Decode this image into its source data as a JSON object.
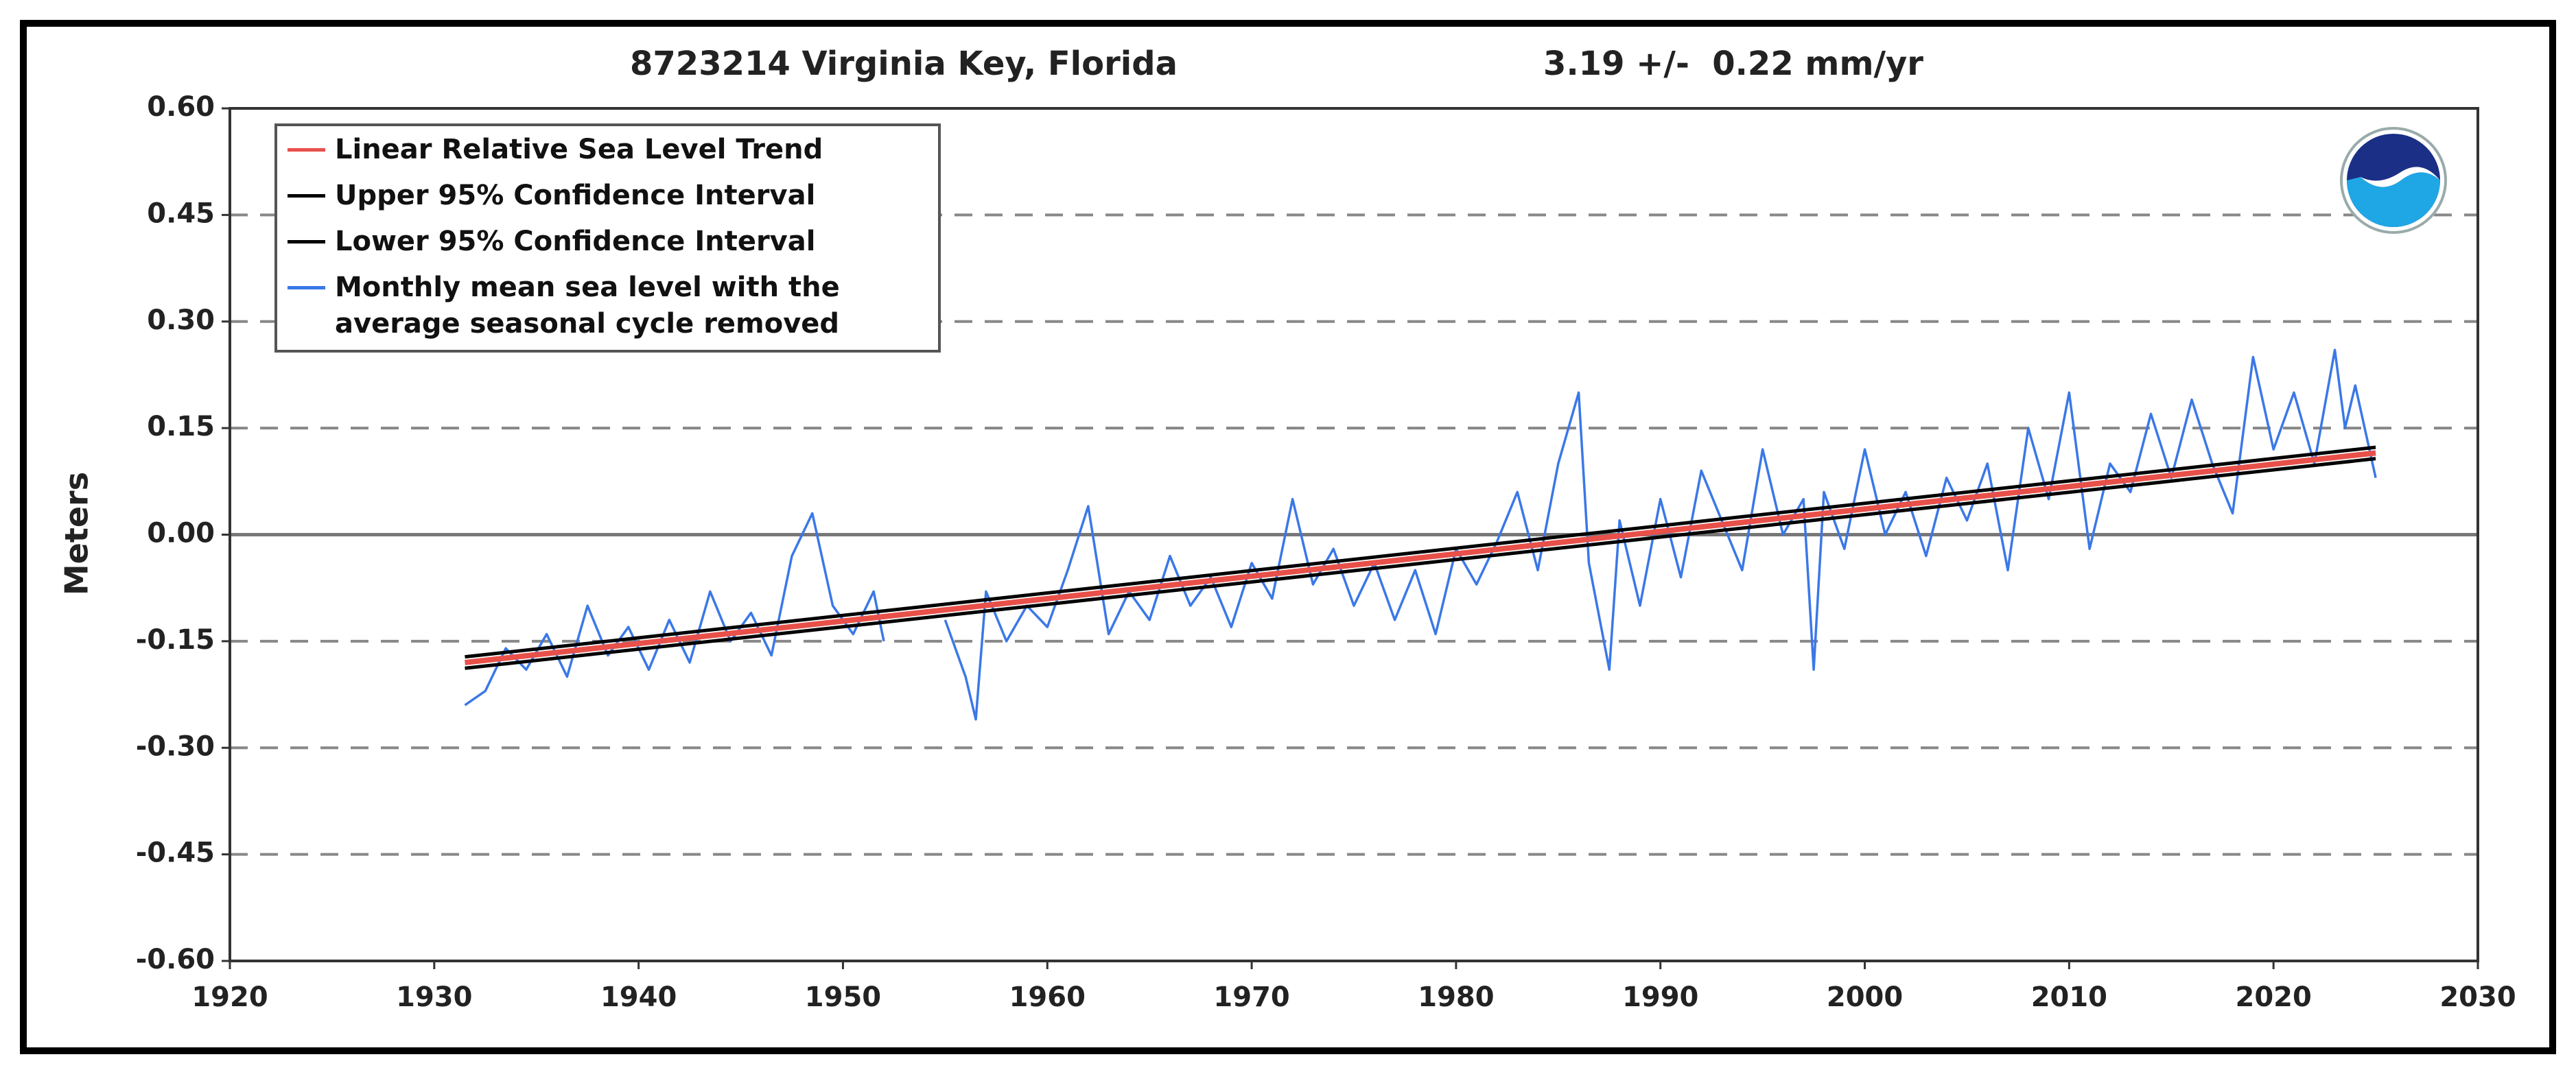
{
  "chart_data": {
    "type": "line",
    "title": "8723214 Virginia Key, Florida",
    "subtitle": "3.19 +/-  0.22 mm/yr",
    "ylabel": "Meters",
    "xlim": [
      1920,
      2030
    ],
    "xticks": [
      1920,
      1930,
      1940,
      1950,
      1960,
      1970,
      1980,
      1990,
      2000,
      2010,
      2020,
      2030
    ],
    "ylim": [
      -0.6,
      0.6
    ],
    "yticks": [
      {
        "value": 0.6,
        "label": "0.60"
      },
      0.45,
      {
        "value": 0.3,
        "label": "0.30"
      },
      0.15,
      {
        "value": 0,
        "label": "0.00"
      },
      -0.15,
      {
        "value": -0.3,
        "label": "-0.30"
      },
      -0.45,
      {
        "value": -0.6,
        "label": "-0.60"
      }
    ],
    "grid": true,
    "legend": "upper left",
    "series": [
      {
        "name": "Linear Relative Sea Level Trend",
        "color": "#e8504a",
        "x": [
          1931.5,
          2025
        ],
        "values": [
          -0.18,
          0.115
        ]
      },
      {
        "name": "Upper 95% Confidence Interval",
        "color": "#000000",
        "x": [
          1931.5,
          2025
        ],
        "values": [
          -0.172,
          0.123
        ]
      },
      {
        "name": "Lower 95% Confidence Interval",
        "color": "#000000",
        "x": [
          1931.5,
          2025
        ],
        "values": [
          -0.188,
          0.107
        ]
      },
      {
        "name": "Monthly mean sea level with the\naverage seasonal cycle removed",
        "color": "#3b78e7",
        "x": [
          1931.5,
          1932.5,
          1933.5,
          1934.5,
          1935.5,
          1936.5,
          1937.5,
          1938.5,
          1939.5,
          1940.5,
          1941.5,
          1942.5,
          1943.5,
          1944.5,
          1945.5,
          1946.5,
          1947.5,
          1948.5,
          1949.5,
          1950.5,
          1951.5,
          1952,
          1953.5,
          1955,
          1956,
          1956.5,
          1957,
          1958,
          1959,
          1960,
          1961,
          1962,
          1963,
          1964,
          1965,
          1966,
          1967,
          1968,
          1969,
          1970,
          1971,
          1972,
          1973,
          1974,
          1975,
          1976,
          1977,
          1978,
          1979,
          1980,
          1981,
          1982,
          1983,
          1984,
          1985,
          1986,
          1986.5,
          1987.5,
          1988,
          1989,
          1990,
          1991,
          1992,
          1993,
          1994,
          1995,
          1996,
          1997,
          1997.5,
          1998,
          1999,
          2000,
          2001,
          2002,
          2003,
          2004,
          2005,
          2006,
          2007,
          2008,
          2009,
          2010,
          2011,
          2012,
          2013,
          2014,
          2015,
          2016,
          2017,
          2018,
          2019,
          2020,
          2021,
          2022,
          2023,
          2023.5,
          2024,
          2025
        ],
        "values": [
          -0.24,
          -0.22,
          -0.16,
          -0.19,
          -0.14,
          -0.2,
          -0.1,
          -0.17,
          -0.13,
          -0.19,
          -0.12,
          -0.18,
          -0.08,
          -0.15,
          -0.11,
          -0.17,
          -0.03,
          0.03,
          -0.1,
          -0.14,
          -0.08,
          -0.15,
          null,
          -0.12,
          -0.2,
          -0.26,
          -0.08,
          -0.15,
          -0.1,
          -0.13,
          -0.05,
          0.04,
          -0.14,
          -0.08,
          -0.12,
          -0.03,
          -0.1,
          -0.06,
          -0.13,
          -0.04,
          -0.09,
          0.05,
          -0.07,
          -0.02,
          -0.1,
          -0.04,
          -0.12,
          -0.05,
          -0.14,
          -0.02,
          -0.07,
          -0.01,
          0.06,
          -0.05,
          0.1,
          0.2,
          -0.04,
          -0.19,
          0.02,
          -0.1,
          0.05,
          -0.06,
          0.09,
          0.02,
          -0.05,
          0.12,
          0.0,
          0.05,
          -0.19,
          0.06,
          -0.02,
          0.12,
          0.0,
          0.06,
          -0.03,
          0.08,
          0.02,
          0.1,
          -0.05,
          0.15,
          0.05,
          0.2,
          -0.02,
          0.1,
          0.06,
          0.17,
          0.08,
          0.19,
          0.1,
          0.03,
          0.25,
          0.12,
          0.2,
          0.1,
          0.26,
          0.15,
          0.21,
          0.08
        ]
      }
    ]
  }
}
